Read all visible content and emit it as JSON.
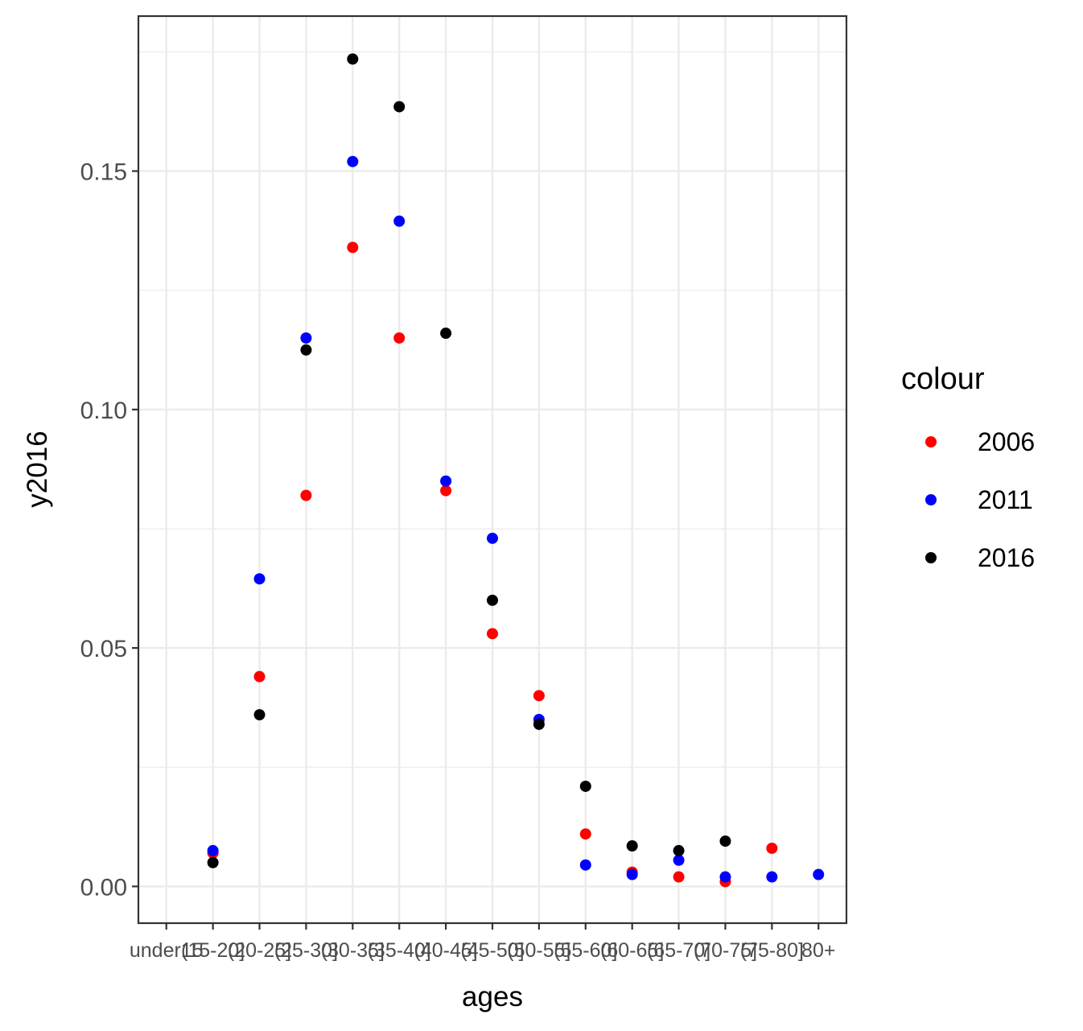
{
  "chart_data": {
    "type": "scatter",
    "xlabel": "ages",
    "ylabel": "y2016",
    "categories": [
      "under15",
      "(15-20]",
      "(20-25]",
      "(25-30]",
      "(30-35]",
      "(35-40]",
      "(40-45]",
      "(45-50]",
      "(50-55]",
      "(55-60]",
      "(60-65]",
      "(65-70]",
      "(70-75]",
      "(75-80]",
      "80+"
    ],
    "ylim": [
      -0.0077,
      0.1825
    ],
    "yticks": [
      "0.00",
      "0.05",
      "0.10",
      "0.15"
    ],
    "ytick_values": [
      0,
      0.05,
      0.1,
      0.15
    ],
    "grid": true,
    "legend": {
      "title": "colour",
      "position": "right"
    },
    "series": [
      {
        "name": "2006",
        "color": "#ff0000",
        "values": [
          null,
          0.007,
          0.044,
          0.082,
          0.134,
          0.115,
          0.083,
          0.053,
          0.04,
          0.011,
          0.003,
          0.002,
          0.001,
          0.008,
          null
        ]
      },
      {
        "name": "2011",
        "color": "#0000ff",
        "values": [
          null,
          0.0075,
          0.0645,
          0.115,
          0.152,
          0.1395,
          0.085,
          0.073,
          0.035,
          0.0045,
          0.0025,
          0.0055,
          0.002,
          0.002,
          0.0025
        ]
      },
      {
        "name": "2016",
        "color": "#000000",
        "values": [
          null,
          0.005,
          0.036,
          0.1125,
          0.1735,
          0.1635,
          0.116,
          0.06,
          0.034,
          0.021,
          0.0085,
          0.0075,
          0.0095,
          null,
          null
        ]
      }
    ]
  }
}
